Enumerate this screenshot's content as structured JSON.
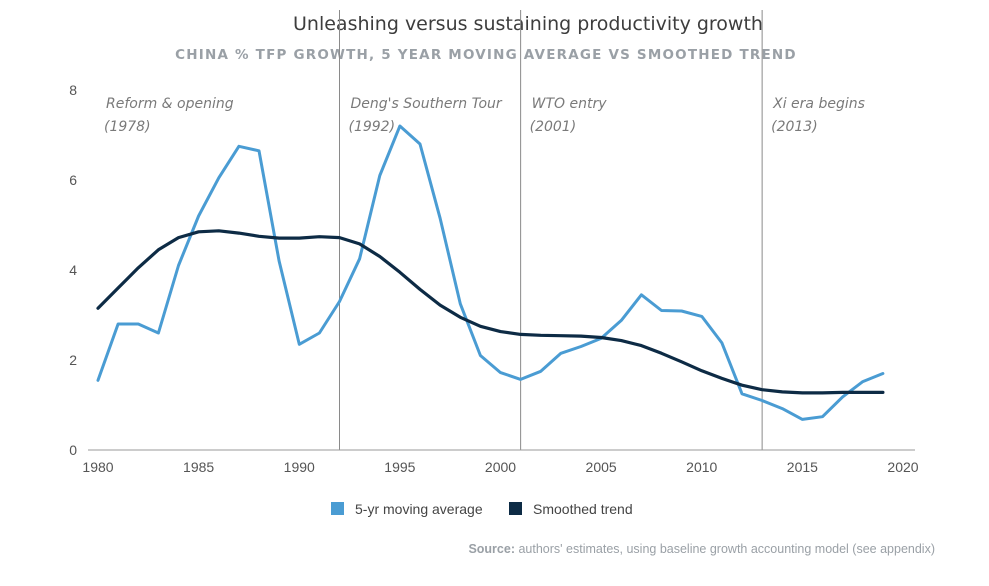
{
  "chart_data": {
    "type": "line",
    "title": "Unleashing versus sustaining productivity growth",
    "subtitle": "CHINA % TFP GROWTH, 5 YEAR MOVING AVERAGE VS SMOOTHED TREND",
    "xlabel": "",
    "ylabel": "",
    "xlim": [
      1980,
      2020
    ],
    "ylim": [
      0,
      8
    ],
    "x_ticks": [
      "1980",
      "1985",
      "1990",
      "1995",
      "2000",
      "2005",
      "2010",
      "2015",
      "2020"
    ],
    "y_ticks": [
      "0",
      "2",
      "4",
      "6",
      "8"
    ],
    "grid": false,
    "legend_position": "bottom-center",
    "series": [
      {
        "name": "5-yr moving average",
        "color": "#4a9cd3",
        "x": [
          1980,
          1981,
          1982,
          1983,
          1984,
          1985,
          1986,
          1987,
          1988,
          1989,
          1990,
          1991,
          1992,
          1993,
          1994,
          1995,
          1996,
          1997,
          1998,
          1999,
          2000,
          2001,
          2002,
          2003,
          2004,
          2005,
          2006,
          2007,
          2008,
          2009,
          2010,
          2011,
          2012,
          2013,
          2014,
          2015,
          2016,
          2017,
          2018,
          2019
        ],
        "y": [
          1.55,
          2.8,
          2.8,
          2.6,
          4.1,
          5.2,
          6.05,
          6.75,
          6.65,
          4.2,
          2.35,
          2.6,
          3.3,
          4.25,
          6.1,
          7.2,
          6.8,
          5.15,
          3.25,
          2.1,
          1.72,
          1.57,
          1.75,
          2.15,
          2.3,
          2.48,
          2.88,
          3.45,
          3.1,
          3.09,
          2.97,
          2.38,
          1.25,
          1.1,
          0.92,
          0.68,
          0.74,
          1.18,
          1.52,
          1.7
        ]
      },
      {
        "name": "Smoothed trend",
        "color": "#0d2b45",
        "x": [
          1980,
          1981,
          1982,
          1983,
          1984,
          1985,
          1986,
          1987,
          1988,
          1989,
          1990,
          1991,
          1992,
          1993,
          1994,
          1995,
          1996,
          1997,
          1998,
          1999,
          2000,
          2001,
          2002,
          2003,
          2004,
          2005,
          2006,
          2007,
          2008,
          2009,
          2010,
          2011,
          2012,
          2013,
          2014,
          2015,
          2016,
          2017,
          2018,
          2019
        ],
        "y": [
          3.15,
          3.6,
          4.05,
          4.45,
          4.72,
          4.85,
          4.87,
          4.82,
          4.75,
          4.71,
          4.71,
          4.74,
          4.72,
          4.58,
          4.3,
          3.95,
          3.57,
          3.22,
          2.95,
          2.75,
          2.63,
          2.57,
          2.55,
          2.54,
          2.53,
          2.5,
          2.43,
          2.32,
          2.15,
          1.96,
          1.76,
          1.59,
          1.44,
          1.34,
          1.29,
          1.27,
          1.27,
          1.28,
          1.28,
          1.28
        ]
      }
    ],
    "events": [
      {
        "x": 1978,
        "line": false,
        "label": "Reform & opening",
        "year_label": "(1978)"
      },
      {
        "x": 1992,
        "line": true,
        "label": "Deng's Southern Tour",
        "year_label": "(1992)"
      },
      {
        "x": 2001,
        "line": true,
        "label": "WTO entry",
        "year_label": "(2001)"
      },
      {
        "x": 2013,
        "line": true,
        "label": "Xi era begins",
        "year_label": "(2013)"
      }
    ]
  },
  "footer": {
    "source_label": "Source:",
    "source_text": " authors' estimates, using baseline growth accounting model (see appendix)"
  },
  "colors": {
    "axis": "#999999",
    "event_line": "#8a8a8a"
  }
}
